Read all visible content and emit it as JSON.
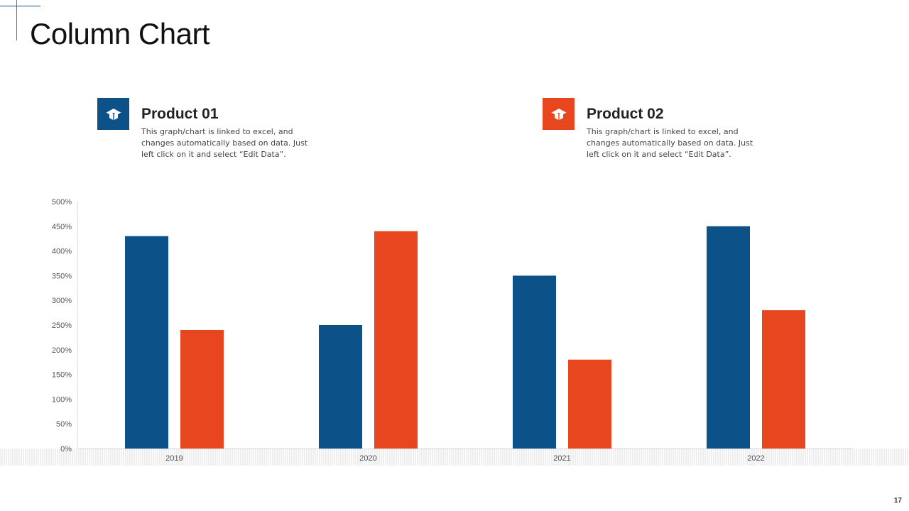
{
  "slide": {
    "title": "Column Chart",
    "page_number": "17"
  },
  "legend": [
    {
      "name": "Product 01",
      "description": "This graph/chart is linked to excel, and changes automatically based on data. Just left click on it and select “Edit Data”.",
      "icon": "open-box-icon",
      "color": "#0d5189"
    },
    {
      "name": "Product 02",
      "description": "This graph/chart is linked to excel, and changes automatically based on data. Just left click on it and select “Edit Data”.",
      "icon": "open-box-icon",
      "color": "#e8461e"
    }
  ],
  "colors": {
    "accent_blue": "#0d5189",
    "accent_orange": "#e8461e",
    "axis": "#d9d9d9",
    "tick_text": "#555555"
  },
  "chart_data": {
    "type": "bar",
    "title": "",
    "xlabel": "",
    "ylabel": "",
    "categories": [
      "2019",
      "2020",
      "2021",
      "2022"
    ],
    "series": [
      {
        "name": "Product 01",
        "values": [
          430,
          250,
          350,
          450
        ],
        "color": "#0d5189"
      },
      {
        "name": "Product 02",
        "values": [
          240,
          440,
          180,
          280
        ],
        "color": "#e8461e"
      }
    ],
    "ylim": [
      0,
      500
    ],
    "ytick_step": 50,
    "ytick_format": "percent",
    "grid": false,
    "legend": "top"
  }
}
